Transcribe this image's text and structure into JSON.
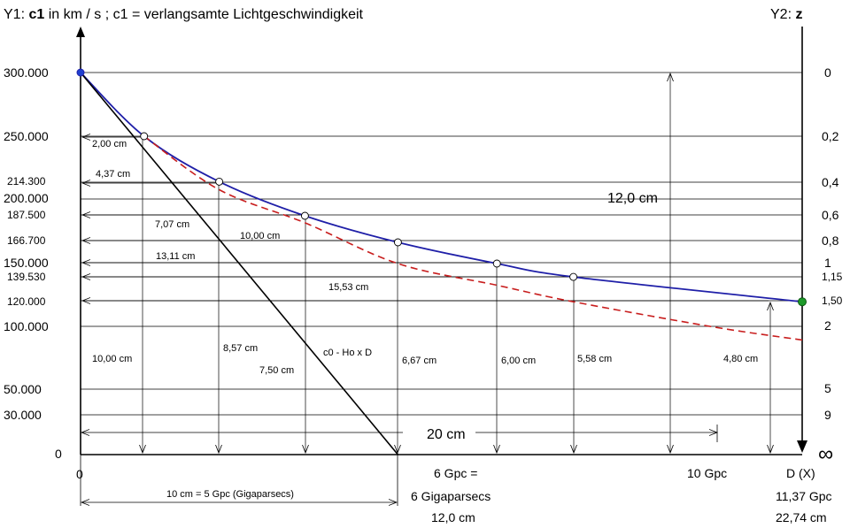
{
  "titles": {
    "y1_prefix": "Y1: ",
    "y1_bold": "c1",
    "y1_rest": " in km / s ; c1 = verlangsamte Lichtgeschwindigkeit",
    "y2_prefix": "Y2: ",
    "y2_bold": "z"
  },
  "chart_data": {
    "type": "line",
    "y1_ticks": [
      "300.000",
      "250.000",
      "214.300",
      "200.000",
      "187.500",
      "166.700",
      "150.000",
      "139.530",
      "120.000",
      "100.000",
      "50.000",
      "30.000",
      "0"
    ],
    "y2_ticks": [
      "0",
      "0,2",
      "0,4",
      "0,6",
      "0,8",
      "1",
      "1,15",
      "1,50",
      "2",
      "5",
      "9",
      "∞"
    ],
    "x_labels": {
      "origin": "0",
      "gpc6": [
        "6 Gpc =",
        "6 Gigaparsecs",
        "12,0 cm"
      ],
      "gpc10": "10 Gpc",
      "end": [
        "D (X)",
        "11,37 Gpc",
        "22,74 cm"
      ]
    },
    "series": [
      {
        "color": "#1f1fa8",
        "points": [
          {
            "x": 0,
            "y": 300000
          },
          {
            "x": 1.0,
            "y": 250000
          },
          {
            "x": 2.185,
            "y": 214300
          },
          {
            "x": 3.535,
            "y": 187500
          },
          {
            "x": 5.0,
            "y": 166700
          },
          {
            "x": 6.56,
            "y": 150000
          },
          {
            "x": 7.765,
            "y": 139530
          },
          {
            "x": 11.37,
            "y": 120000
          }
        ]
      },
      {
        "color": "#c81e1e",
        "points": [
          {
            "x": 1.0,
            "y": 250000
          },
          {
            "x": 2.185,
            "y": 208000
          },
          {
            "x": 3.535,
            "y": 182000
          },
          {
            "x": 5.0,
            "y": 150000
          },
          {
            "x": 6.56,
            "y": 133000
          },
          {
            "x": 7.765,
            "y": 120000
          },
          {
            "x": 10.0,
            "y": 100000
          },
          {
            "x": 11.37,
            "y": 90000
          }
        ]
      },
      {
        "name": "c0 - Ho x D",
        "color": "#000000",
        "points": [
          {
            "x": 0,
            "y": 300000
          },
          {
            "x": 5.0,
            "y": 0
          }
        ]
      }
    ],
    "annotations": {
      "slant": [
        "2,00 cm",
        "4,37 cm",
        "7,07 cm",
        "10,00 cm",
        "13,11 cm",
        "15,53 cm"
      ],
      "vertical": [
        "10,00 cm",
        "8,57 cm",
        "7,50 cm",
        "6,67 cm",
        "6,00 cm",
        "5,58 cm",
        "4,80 cm"
      ],
      "right_height": "12,0 cm",
      "width": "20 cm",
      "bottom_scale": "10 cm = 5 Gpc (Gigaparsecs)"
    }
  }
}
